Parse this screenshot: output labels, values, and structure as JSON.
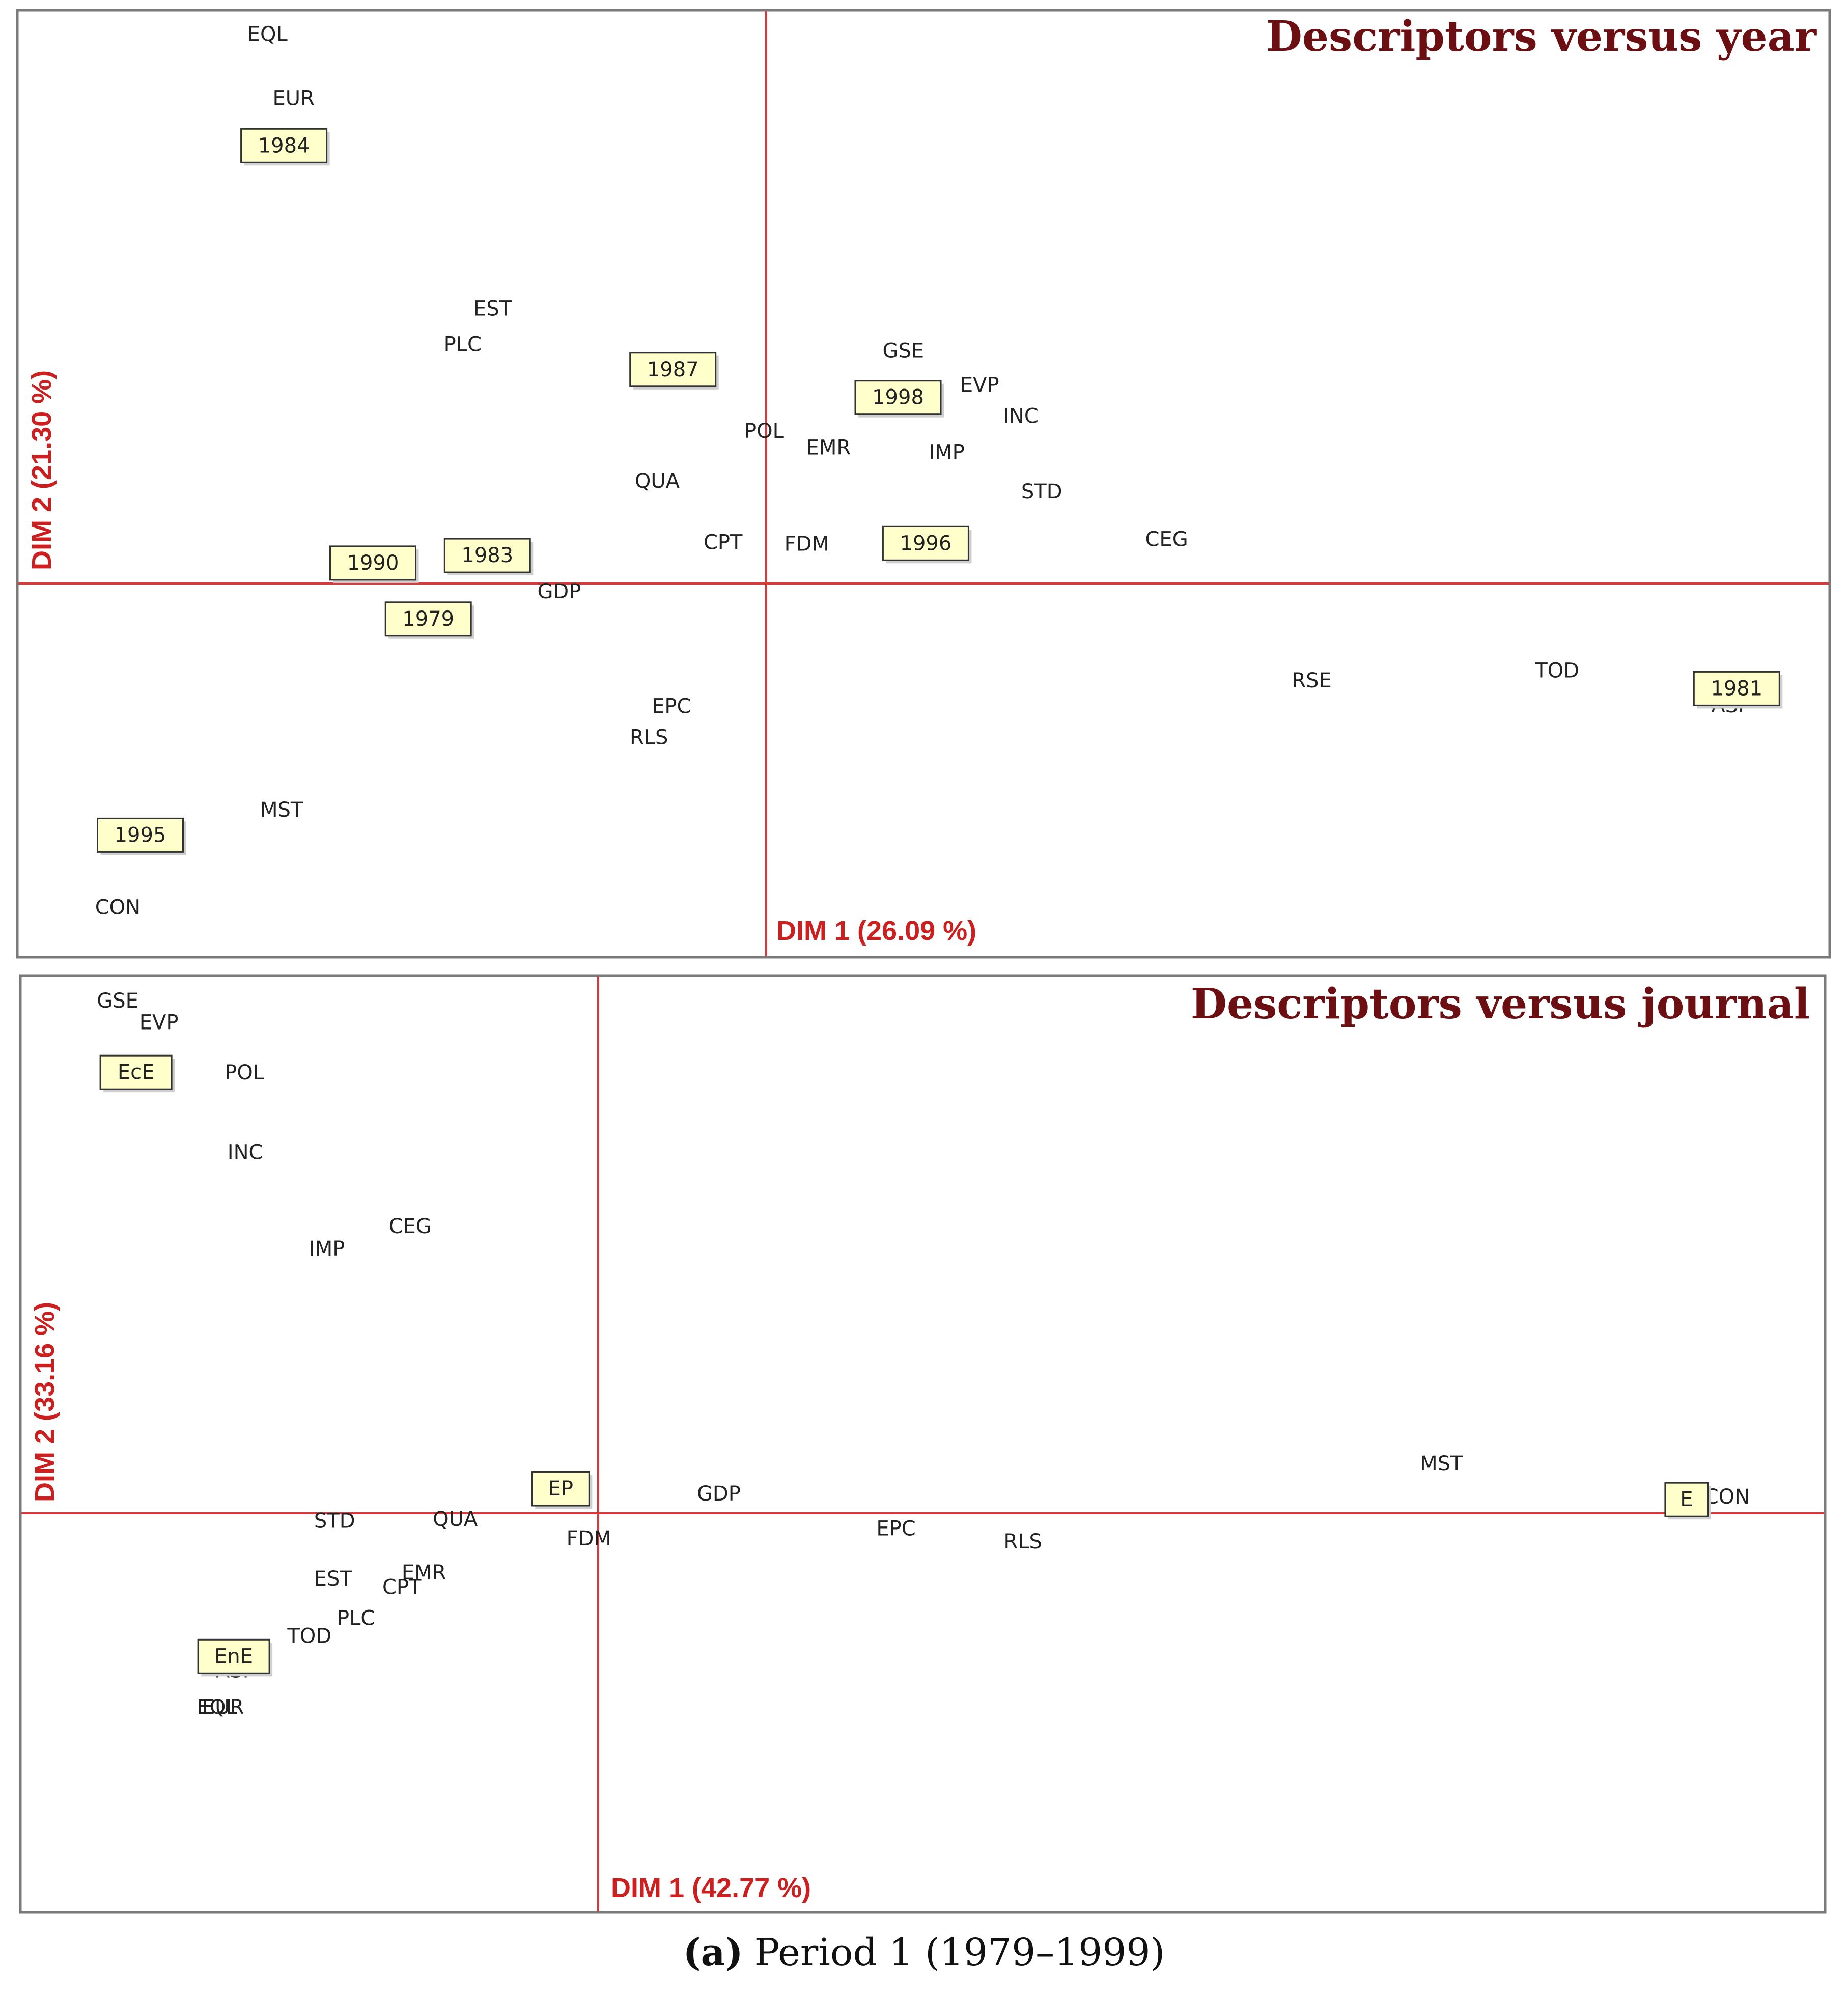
{
  "chart_data": [
    {
      "type": "scatter",
      "title": "Descriptors versus year",
      "xlabel": "DIM 1 (26.09 %)",
      "ylabel": "DIM 2 (21.30 %)",
      "xlim": [
        -1.0,
        1.42
      ],
      "ylim": [
        -0.5,
        0.75
      ],
      "descriptors": [
        {
          "label": "EQL",
          "x": -0.667,
          "y": 0.718
        },
        {
          "label": "EUR",
          "x": -0.632,
          "y": 0.633
        },
        {
          "label": "EST",
          "x": -0.366,
          "y": 0.355
        },
        {
          "label": "PLC",
          "x": -0.406,
          "y": 0.308
        },
        {
          "label": "GSE",
          "x": 0.183,
          "y": 0.299
        },
        {
          "label": "EVP",
          "x": 0.285,
          "y": 0.254
        },
        {
          "label": "INC",
          "x": 0.34,
          "y": 0.213
        },
        {
          "label": "POL",
          "x": -0.003,
          "y": 0.193
        },
        {
          "label": "EMR",
          "x": 0.083,
          "y": 0.171
        },
        {
          "label": "IMP",
          "x": 0.241,
          "y": 0.165
        },
        {
          "label": "QUA",
          "x": -0.146,
          "y": 0.127
        },
        {
          "label": "STD",
          "x": 0.368,
          "y": 0.113
        },
        {
          "label": "CPT",
          "x": -0.058,
          "y": 0.046
        },
        {
          "label": "FDM",
          "x": 0.054,
          "y": 0.044
        },
        {
          "label": "CEG",
          "x": 0.535,
          "y": 0.05
        },
        {
          "label": "GDP",
          "x": -0.277,
          "y": -0.019
        },
        {
          "label": "RSE",
          "x": 0.729,
          "y": -0.137
        },
        {
          "label": "TOD",
          "x": 1.057,
          "y": -0.124
        },
        {
          "label": "ASI",
          "x": 1.285,
          "y": -0.17
        },
        {
          "label": "EPC",
          "x": -0.127,
          "y": -0.171
        },
        {
          "label": "RLS",
          "x": -0.157,
          "y": -0.212
        },
        {
          "label": "MST",
          "x": -0.648,
          "y": -0.308
        },
        {
          "label": "CON",
          "x": -0.867,
          "y": -0.437
        }
      ],
      "supplementary": [
        {
          "label": "1984",
          "x": -0.645,
          "y": 0.572
        },
        {
          "label": "1987",
          "x": -0.125,
          "y": 0.276
        },
        {
          "label": "1998",
          "x": 0.176,
          "y": 0.239
        },
        {
          "label": "1990",
          "x": -0.526,
          "y": 0.02
        },
        {
          "label": "1983",
          "x": -0.373,
          "y": 0.03
        },
        {
          "label": "1996",
          "x": 0.213,
          "y": 0.046
        },
        {
          "label": "1979",
          "x": -0.452,
          "y": -0.054
        },
        {
          "label": "1981",
          "x": 1.297,
          "y": -0.146
        },
        {
          "label": "1995",
          "x": -0.837,
          "y": -0.34
        }
      ]
    },
    {
      "type": "scatter",
      "title": "Descriptors versus journal",
      "xlabel": "DIM 1 (42.77 %)",
      "ylabel": "DIM 2 (33.16 %)",
      "xlim": [
        -0.76,
        1.6
      ],
      "ylim": [
        -0.52,
        0.69
      ],
      "descriptors": [
        {
          "label": "GSE",
          "x": -0.634,
          "y": 0.657
        },
        {
          "label": "EVP",
          "x": -0.58,
          "y": 0.629
        },
        {
          "label": "POL",
          "x": -0.468,
          "y": 0.564
        },
        {
          "label": "INC",
          "x": -0.467,
          "y": 0.461
        },
        {
          "label": "CEG",
          "x": -0.251,
          "y": 0.365
        },
        {
          "label": "IMP",
          "x": -0.36,
          "y": 0.336
        },
        {
          "label": "GDP",
          "x": 0.153,
          "y": 0.019
        },
        {
          "label": "MST",
          "x": 1.099,
          "y": 0.058
        },
        {
          "label": "CON",
          "x": 1.473,
          "y": 0.015
        },
        {
          "label": "STD",
          "x": -0.35,
          "y": -0.016
        },
        {
          "label": "QUA",
          "x": -0.192,
          "y": -0.014
        },
        {
          "label": "FDM",
          "x": -0.017,
          "y": -0.039
        },
        {
          "label": "EPC",
          "x": 0.385,
          "y": -0.026
        },
        {
          "label": "RLS",
          "x": 0.551,
          "y": -0.043
        },
        {
          "label": "EMR",
          "x": -0.233,
          "y": -0.083
        },
        {
          "label": "EST",
          "x": -0.352,
          "y": -0.091
        },
        {
          "label": "CPT",
          "x": -0.262,
          "y": -0.102
        },
        {
          "label": "PLC",
          "x": -0.322,
          "y": -0.142
        },
        {
          "label": "TOD",
          "x": -0.383,
          "y": -0.165
        },
        {
          "label": "ASI",
          "x": -0.484,
          "y": -0.21
        },
        {
          "label": "EQL",
          "x": -0.504,
          "y": -0.257
        },
        {
          "label": "EUR",
          "x": -0.496,
          "y": -0.257
        }
      ],
      "supplementary": [
        {
          "label": "EcE",
          "x": -0.61,
          "y": 0.566
        },
        {
          "label": "EP",
          "x": -0.054,
          "y": 0.027
        },
        {
          "label": "E",
          "x": 1.42,
          "y": 0.013
        },
        {
          "label": "EnE",
          "x": -0.482,
          "y": -0.19
        }
      ]
    }
  ],
  "caption": {
    "part_label": "(a)",
    "text": "Period 1 (1979–1999)"
  }
}
